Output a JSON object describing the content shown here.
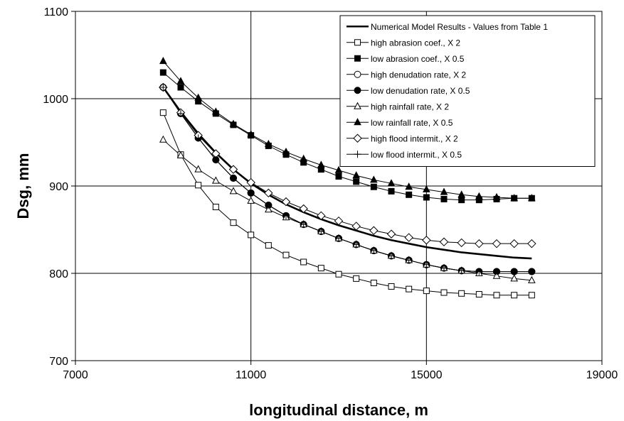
{
  "chart_data": {
    "type": "line",
    "xlabel": "longitudinal distance, m",
    "ylabel": "Dsg, mm",
    "xlim": [
      7000,
      19000
    ],
    "ylim": [
      700,
      1100
    ],
    "xticks": [
      7000,
      11000,
      15000,
      19000
    ],
    "yticks": [
      700,
      800,
      900,
      1000,
      1100
    ],
    "xtick_labels": [
      "7000",
      "11000",
      "15000",
      "19000"
    ],
    "ytick_labels": [
      "700",
      "800",
      "900",
      "1000",
      "1100"
    ],
    "grid": "major gridlines on both axes",
    "legend_position": "top-right",
    "x": [
      9000,
      9400,
      9800,
      10200,
      10600,
      11000,
      11400,
      11800,
      12200,
      12600,
      13000,
      13400,
      13800,
      14200,
      14600,
      15000,
      15400,
      15800,
      16200,
      16600,
      17000,
      17400
    ],
    "series": [
      {
        "name": "Numerical Model Results - Values from Table 1",
        "marker": "none",
        "width": 2.6,
        "values": [
          1013,
          985,
          960,
          938,
          919,
          903,
          890,
          879,
          870,
          862,
          855,
          849,
          843,
          838,
          834,
          830,
          827,
          824,
          822,
          820,
          818,
          817
        ]
      },
      {
        "name": "high abrasion coef., X 2",
        "marker": "square-open",
        "values": [
          984,
          936,
          901,
          876,
          858,
          844,
          832,
          821,
          813,
          806,
          799,
          794,
          789,
          785,
          782,
          780,
          778,
          777,
          776,
          775,
          775,
          775
        ]
      },
      {
        "name": "low abrasion coef., X 0.5",
        "marker": "square-filled",
        "values": [
          1030,
          1013,
          997,
          983,
          970,
          958,
          946,
          936,
          927,
          919,
          911,
          905,
          899,
          894,
          890,
          887,
          885,
          884,
          884,
          885,
          886,
          886
        ]
      },
      {
        "name": "high denudation rate, X 2",
        "marker": "circle-open",
        "values": [
          1013,
          983,
          955,
          930,
          909,
          892,
          878,
          866,
          856,
          848,
          840,
          833,
          826,
          820,
          815,
          810,
          806,
          803,
          802,
          802,
          802,
          802
        ]
      },
      {
        "name": "low denudation rate, X 0.5",
        "marker": "circle-filled",
        "values": [
          1013,
          983,
          955,
          930,
          909,
          892,
          878,
          866,
          856,
          848,
          840,
          833,
          826,
          820,
          815,
          810,
          806,
          803,
          802,
          802,
          802,
          802
        ]
      },
      {
        "name": "high rainfall rate, X 2",
        "marker": "triangle-open",
        "values": [
          953,
          935,
          919,
          906,
          894,
          883,
          873,
          864,
          856,
          848,
          840,
          833,
          826,
          820,
          815,
          810,
          806,
          803,
          800,
          797,
          794,
          792
        ]
      },
      {
        "name": "low rainfall rate, X 0.5",
        "marker": "triangle-filled",
        "values": [
          1043,
          1020,
          1001,
          985,
          971,
          959,
          948,
          939,
          931,
          924,
          918,
          912,
          907,
          903,
          899,
          896,
          893,
          890,
          888,
          887,
          886,
          886
        ]
      },
      {
        "name": "high flood intermit., X 2",
        "marker": "diamond-open",
        "values": [
          1013,
          984,
          958,
          937,
          919,
          904,
          892,
          882,
          874,
          866,
          860,
          854,
          849,
          845,
          841,
          838,
          836,
          835,
          834,
          834,
          834,
          834
        ]
      },
      {
        "name": "low flood intermit., X 0.5",
        "marker": "plus",
        "values": [
          1013,
          983,
          955,
          930,
          909,
          892,
          878,
          866,
          856,
          848,
          840,
          833,
          826,
          820,
          815,
          810,
          806,
          803,
          802,
          802,
          802,
          802
        ]
      }
    ]
  }
}
